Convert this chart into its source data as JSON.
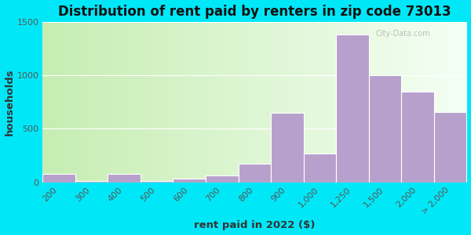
{
  "title": "Distribution of rent paid by renters in zip code 73013",
  "xlabel": "rent paid in 2022 ($)",
  "ylabel": "households",
  "bar_labels": [
    "200",
    "300",
    "400",
    "500",
    "600",
    "700",
    "800",
    "900",
    "1,000",
    "1,250",
    "1,500",
    "2,000",
    "> 2,000"
  ],
  "bar_values": [
    75,
    12,
    80,
    12,
    30,
    65,
    170,
    650,
    265,
    1380,
    1000,
    850,
    660
  ],
  "bar_color": "#b8a0cc",
  "bar_edge_color": "#ffffff",
  "ylim": [
    0,
    1500
  ],
  "yticks": [
    0,
    500,
    1000,
    1500
  ],
  "bg_left_color": "#c8e8b0",
  "bg_right_color": "#f0f8f0",
  "outer_bg": "#00e8f8",
  "watermark": "City-Data.com",
  "title_fontsize": 12,
  "label_fontsize": 9.5,
  "tick_fontsize": 8
}
